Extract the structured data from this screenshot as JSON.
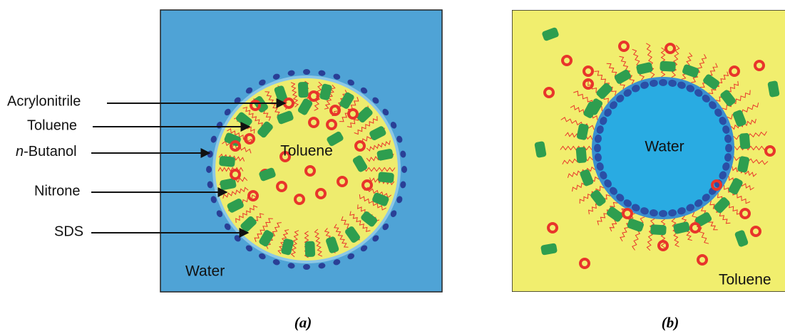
{
  "panel_a": {
    "labels": [
      "Acrylonitrile",
      "Toluene",
      {
        "prefix": "n",
        "rest": "-Butanol"
      },
      "Nitrone",
      "SDS"
    ],
    "inner_label": "Toluene",
    "outer_label": "Water",
    "caption": "(a)"
  },
  "panel_b": {
    "inner_label": "Water",
    "outer_label": "Toluene",
    "caption": "(b)"
  }
}
